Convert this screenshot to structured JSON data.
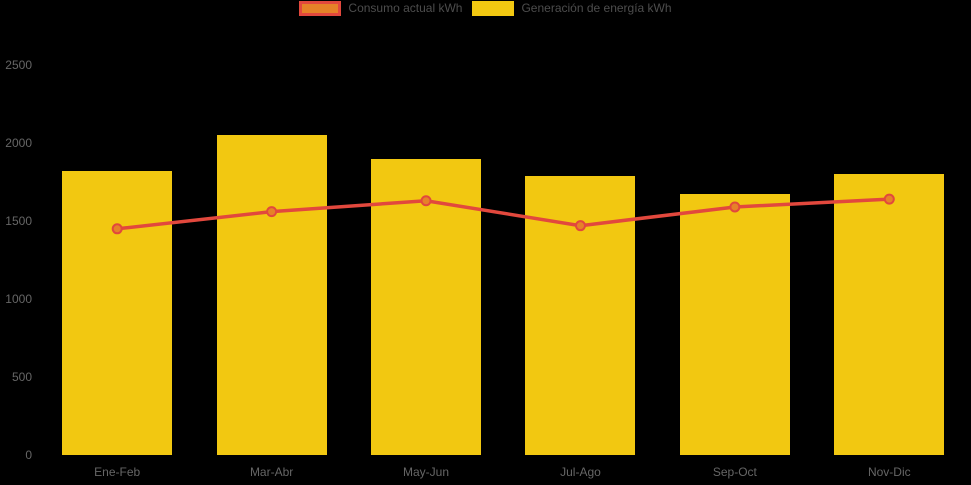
{
  "chart": {
    "background": "#000000",
    "legend": {
      "items": [
        {
          "label": "Consumo actual kWh",
          "swatch_fill": "#e68228",
          "swatch_border": "#e2483d"
        },
        {
          "label": "Generación de energía kWh",
          "swatch_fill": "#f2c811",
          "swatch_border": "#f2c811"
        }
      ],
      "text_color": "#4d4d4d"
    },
    "axis_label_color": "#666666"
  },
  "chart_data": {
    "type": "combo",
    "title": "",
    "xlabel": "",
    "ylabel": "",
    "categories": [
      "Ene-Feb",
      "Mar-Abr",
      "May-Jun",
      "Jul-Ago",
      "Sep-Oct",
      "Nov-Dic"
    ],
    "series": [
      {
        "name": "Generación de energía kWh",
        "type": "bar",
        "color": "#f2c811",
        "values": [
          1820,
          2050,
          1900,
          1790,
          1670,
          1800
        ]
      },
      {
        "name": "Consumo actual kWh",
        "type": "line",
        "color": "#e2483d",
        "marker_fill": "#e68228",
        "marker_stroke": "#e2483d",
        "values": [
          1450,
          1560,
          1630,
          1470,
          1590,
          1640
        ]
      }
    ],
    "yticks": [
      0,
      500,
      1000,
      1500,
      2000,
      2500
    ],
    "ylim": [
      0,
      2500
    ],
    "grid": false,
    "legend_position": "top"
  }
}
